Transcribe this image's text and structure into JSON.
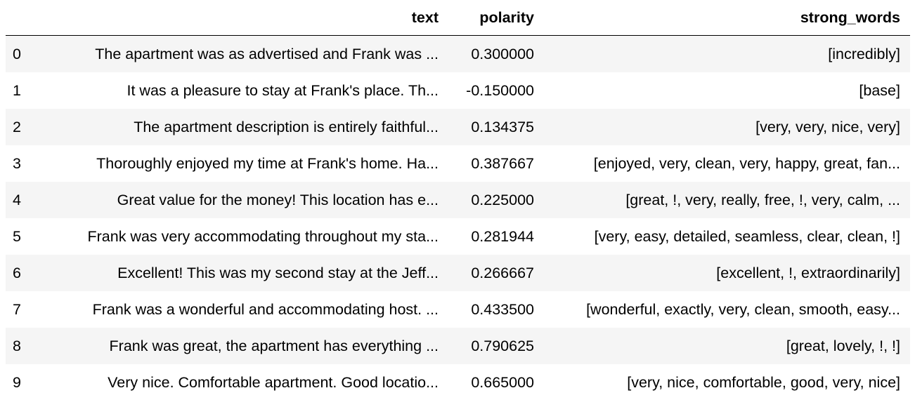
{
  "dataframe": {
    "columns": [
      "",
      "text",
      "polarity",
      "strong_words"
    ],
    "rows": [
      {
        "index": "0",
        "text": "The apartment was as advertised and Frank was ...",
        "polarity": "0.300000",
        "strong_words": "[incredibly]"
      },
      {
        "index": "1",
        "text": "It was a pleasure to stay at Frank's place. Th...",
        "polarity": "-0.150000",
        "strong_words": "[base]"
      },
      {
        "index": "2",
        "text": "The apartment description is entirely faithful...",
        "polarity": "0.134375",
        "strong_words": "[very, very, nice, very]"
      },
      {
        "index": "3",
        "text": "Thoroughly enjoyed my time at Frank's home. Ha...",
        "polarity": "0.387667",
        "strong_words": "[enjoyed, very, clean, very, happy, great, fan..."
      },
      {
        "index": "4",
        "text": "Great value for the money! This location has e...",
        "polarity": "0.225000",
        "strong_words": "[great, !, very, really, free, !, very, calm, ..."
      },
      {
        "index": "5",
        "text": "Frank was very accommodating throughout my sta...",
        "polarity": "0.281944",
        "strong_words": "[very, easy, detailed, seamless, clear, clean, !]"
      },
      {
        "index": "6",
        "text": "Excellent! This was my second stay at the Jeff...",
        "polarity": "0.266667",
        "strong_words": "[excellent, !, extraordinarily]"
      },
      {
        "index": "7",
        "text": "Frank was a wonderful and accommodating host. ...",
        "polarity": "0.433500",
        "strong_words": "[wonderful, exactly, very, clean, smooth, easy..."
      },
      {
        "index": "8",
        "text": "Frank was great, the apartment has everything ...",
        "polarity": "0.790625",
        "strong_words": "[great, lovely, !, !]"
      },
      {
        "index": "9",
        "text": "Very nice. Comfortable apartment. Good locatio...",
        "polarity": "0.665000",
        "strong_words": "[very, nice, comfortable, good, very, nice]"
      }
    ]
  }
}
